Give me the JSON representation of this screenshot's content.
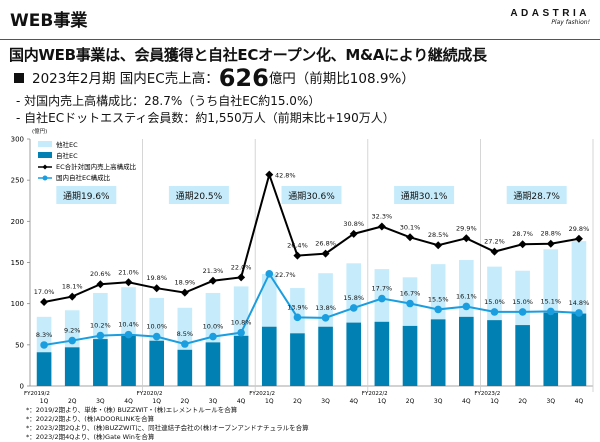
{
  "header": {
    "title": "WEB事業",
    "logo_brand": "ADASTRIA",
    "logo_tagline": "Play fashion!"
  },
  "headline": "国内WEB事業は、会員獲得と自社ECオープン化、M&Aにより継続成長",
  "kpi": {
    "prefix": "2023年2月期 国内EC売上高：",
    "value": "626",
    "suffix": "億円（前期比108.9%）"
  },
  "bullets": [
    "- 対国内売上高構成比：28.7%（うち自社EC約15.0%）",
    "- 自社ECドットエスティ会員数：約1,550万人（前期末比+190万人）"
  ],
  "footnotes": [
    "*：2019/2期より、単体・(株) BUZZWIT・(株)エレメントルールを合算",
    "*：2022/2期より、(株)ADOORLINKを合算",
    "*：2023/2期2Qより、(株)BUZZWITに、同社連結子会社の(株)オープンアンドナチュラルを合算",
    "*：2023/2期4Qより、(株)Gate Winを合算"
  ],
  "colors": {
    "other_ec": "#c6ecfb",
    "own_ec": "#0080b3",
    "total_ratio_line": "#000000",
    "own_ratio_line": "#1a9ee0",
    "annual_box": "#c6ecfb"
  },
  "chart_data": {
    "type": "bar+line",
    "yunit": "(億円)",
    "ylim": [
      0,
      300
    ],
    "yticks": [
      0,
      50,
      100,
      150,
      200,
      250,
      300
    ],
    "secondary_ylim_percent": [
      0,
      50
    ],
    "fiscal_years": [
      "FY2019/2",
      "FY2020/2",
      "FY2021/2",
      "FY2022/2",
      "FY2023/2"
    ],
    "quarters": [
      "1Q",
      "2Q",
      "3Q",
      "4Q"
    ],
    "annual_labels": [
      "通期19.6%",
      "通期20.5%",
      "通期30.6%",
      "通期30.1%",
      "通期28.7%"
    ],
    "legend": [
      "他社EC",
      "自社EC",
      "EC合計対国内売上高構成比",
      "国内自社EC構成比"
    ],
    "legend_position": "top-left",
    "series": [
      {
        "name": "他社EC",
        "type": "stacked-bar",
        "values": [
          43,
          45,
          56,
          59,
          52,
          51,
          60,
          60,
          64,
          55,
          65,
          72,
          64,
          59,
          67,
          69,
          65,
          66,
          77,
          88
        ]
      },
      {
        "name": "自社EC",
        "type": "stacked-bar",
        "values": [
          41,
          47,
          57,
          61,
          55,
          44,
          53,
          61,
          72,
          64,
          72,
          77,
          78,
          73,
          81,
          84,
          80,
          74,
          89,
          88
        ]
      },
      {
        "name": "EC合計対国内売上高構成比",
        "type": "line",
        "unit": "%",
        "values": [
          17.0,
          18.1,
          20.6,
          21.0,
          19.8,
          18.9,
          21.3,
          22.0,
          42.8,
          26.4,
          26.8,
          30.8,
          32.3,
          30.1,
          28.5,
          29.9,
          27.2,
          28.7,
          28.8,
          29.8
        ]
      },
      {
        "name": "国内自社EC構成比",
        "type": "line",
        "unit": "%",
        "values": [
          8.3,
          9.2,
          10.2,
          10.4,
          10.0,
          8.5,
          10.0,
          10.8,
          22.7,
          13.9,
          13.8,
          15.8,
          17.7,
          16.7,
          15.5,
          16.1,
          15.0,
          15.0,
          15.1,
          14.8
        ]
      }
    ]
  }
}
